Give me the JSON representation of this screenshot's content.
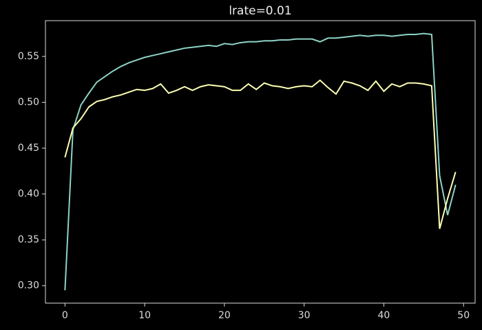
{
  "chart_data": {
    "type": "line",
    "title": "lrate=0.01",
    "x": [
      0,
      1,
      2,
      3,
      4,
      5,
      6,
      7,
      8,
      9,
      10,
      11,
      12,
      13,
      14,
      15,
      16,
      17,
      18,
      19,
      20,
      21,
      22,
      23,
      24,
      25,
      26,
      27,
      28,
      29,
      30,
      31,
      32,
      33,
      34,
      35,
      36,
      37,
      38,
      39,
      40,
      41,
      42,
      43,
      44,
      45,
      46,
      47,
      48,
      49
    ],
    "series": [
      {
        "color": "#8dd3c7",
        "values": [
          0.295,
          0.47,
          0.497,
          0.51,
          0.522,
          0.528,
          0.534,
          0.539,
          0.543,
          0.546,
          0.549,
          0.551,
          0.553,
          0.555,
          0.557,
          0.559,
          0.56,
          0.561,
          0.562,
          0.561,
          0.564,
          0.563,
          0.565,
          0.566,
          0.566,
          0.567,
          0.567,
          0.568,
          0.568,
          0.569,
          0.569,
          0.569,
          0.566,
          0.57,
          0.57,
          0.571,
          0.572,
          0.573,
          0.572,
          0.573,
          0.573,
          0.572,
          0.573,
          0.574,
          0.574,
          0.575,
          0.574,
          0.42,
          0.377,
          0.41
        ]
      },
      {
        "color": "#feffb3",
        "values": [
          0.44,
          0.472,
          0.482,
          0.495,
          0.501,
          0.503,
          0.506,
          0.508,
          0.511,
          0.514,
          0.513,
          0.515,
          0.52,
          0.51,
          0.513,
          0.517,
          0.513,
          0.517,
          0.519,
          0.518,
          0.517,
          0.513,
          0.513,
          0.52,
          0.514,
          0.521,
          0.518,
          0.517,
          0.515,
          0.517,
          0.518,
          0.517,
          0.524,
          0.516,
          0.509,
          0.523,
          0.521,
          0.518,
          0.513,
          0.523,
          0.512,
          0.52,
          0.517,
          0.521,
          0.521,
          0.52,
          0.518,
          0.362,
          0.395,
          0.424
        ]
      }
    ],
    "xlim": [
      -2.45,
      51.45
    ],
    "xticks": [
      0,
      10,
      20,
      30,
      40,
      50
    ],
    "ylim": [
      0.281,
      0.589
    ],
    "yticks": [
      {
        "value": 0.3,
        "label": "0.30"
      },
      0.35,
      {
        "value": 0.4,
        "label": "0.40"
      },
      0.45,
      {
        "value": 0.5,
        "label": "0.50"
      },
      0.55
    ],
    "grid": false
  }
}
